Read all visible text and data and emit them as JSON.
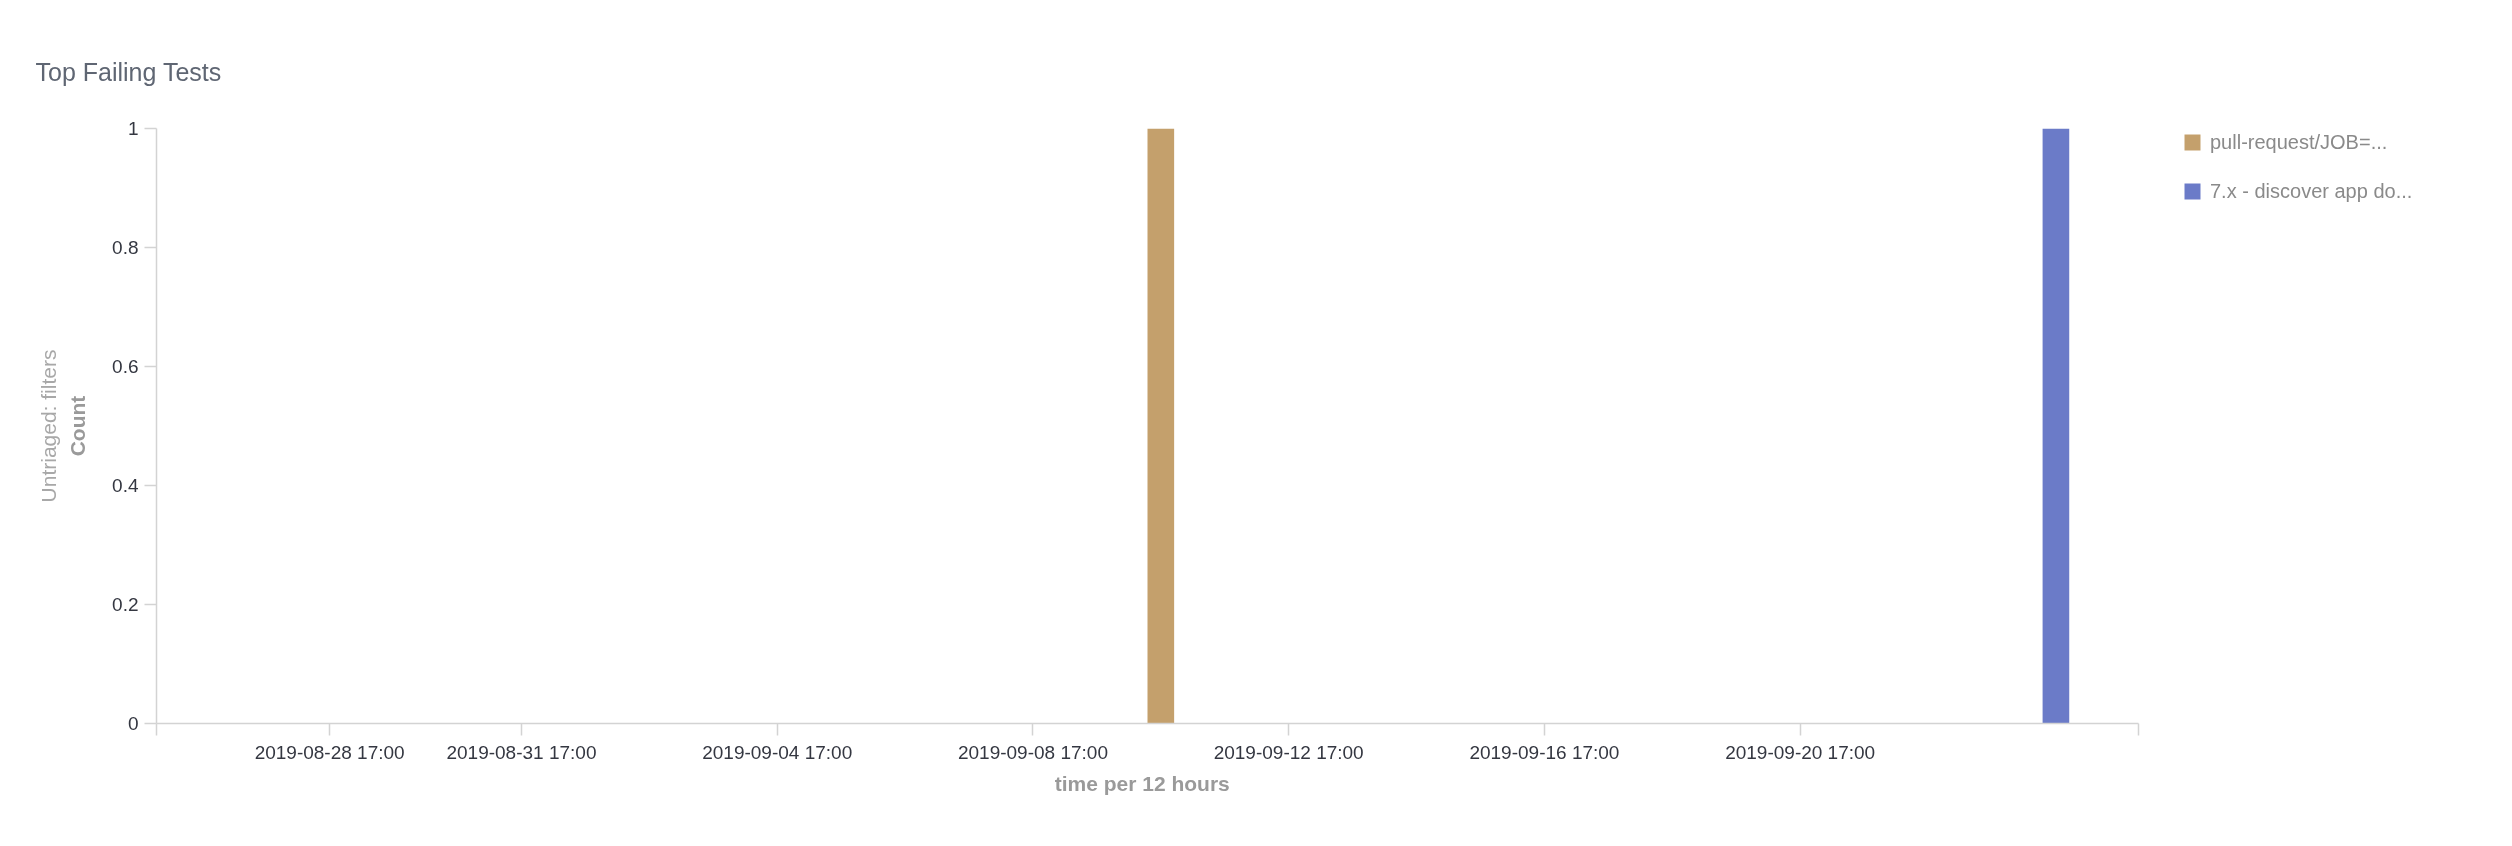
{
  "chart_data": {
    "type": "bar",
    "title": "Top Failing Tests",
    "xlabel": "time per 12 hours",
    "ylabel": "Count",
    "annotations": [
      "Untriaged: filters"
    ],
    "series": [
      {
        "name": "pull-request/JOB=...",
        "color": "#c4a06c",
        "x": [
          "2019-09-10T17:00"
        ],
        "values": [
          1
        ]
      },
      {
        "name": "7.x - discover app do...",
        "color": "#6b7bc8",
        "x": [
          "2019-09-24T17:00"
        ],
        "values": [
          1
        ]
      }
    ],
    "xlim": [
      "2019-08-26T00:00",
      "2019-09-26T00:00"
    ],
    "xticks": [
      {
        "value": "2019-08-26T00:00",
        "label": null
      },
      {
        "value": "2019-08-28T17:00",
        "label": "2019-08-28 17:00"
      },
      {
        "value": "2019-08-31T17:00",
        "label": "2019-08-31 17:00"
      },
      {
        "value": "2019-09-04T17:00",
        "label": "2019-09-04 17:00"
      },
      {
        "value": "2019-09-08T17:00",
        "label": "2019-09-08 17:00"
      },
      {
        "value": "2019-09-12T17:00",
        "label": "2019-09-12 17:00"
      },
      {
        "value": "2019-09-16T17:00",
        "label": "2019-09-16 17:00"
      },
      {
        "value": "2019-09-20T17:00",
        "label": "2019-09-20 17:00"
      },
      {
        "value": "2019-09-26T00:00",
        "label": null
      }
    ],
    "ylim": [
      0,
      1
    ],
    "yticks": [
      0,
      0.2,
      0.4,
      0.6,
      0.8,
      1
    ],
    "legend": "top right"
  }
}
